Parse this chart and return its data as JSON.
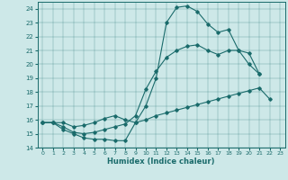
{
  "title": "",
  "xlabel": "Humidex (Indice chaleur)",
  "ylabel": "",
  "xlim": [
    -0.5,
    23.5
  ],
  "ylim": [
    14,
    24.5
  ],
  "yticks": [
    14,
    15,
    16,
    17,
    18,
    19,
    20,
    21,
    22,
    23,
    24
  ],
  "xticks": [
    0,
    1,
    2,
    3,
    4,
    5,
    6,
    7,
    8,
    9,
    10,
    11,
    12,
    13,
    14,
    15,
    16,
    17,
    18,
    19,
    20,
    21,
    22,
    23
  ],
  "bg_color": "#cde8e8",
  "line_color": "#1a6b6b",
  "curve1_x": [
    0,
    1,
    2,
    3,
    4,
    5,
    6,
    7,
    8,
    9,
    10,
    11,
    12,
    13,
    14,
    15,
    16,
    17,
    18,
    19,
    20,
    21
  ],
  "curve1_y": [
    15.8,
    15.8,
    15.3,
    15.0,
    14.7,
    14.6,
    14.6,
    14.5,
    14.5,
    15.8,
    17.0,
    19.0,
    23.0,
    24.1,
    24.2,
    23.8,
    22.9,
    22.3,
    22.5,
    21.0,
    20.0,
    19.3
  ],
  "curve2_x": [
    0,
    1,
    2,
    3,
    4,
    5,
    6,
    7,
    8,
    9,
    10,
    11,
    12,
    13,
    14,
    15,
    16,
    17,
    18,
    19,
    20,
    21,
    22
  ],
  "curve2_y": [
    15.8,
    15.8,
    15.8,
    15.5,
    15.6,
    15.8,
    16.1,
    16.3,
    16.0,
    15.8,
    16.0,
    16.3,
    16.5,
    16.7,
    16.9,
    17.1,
    17.3,
    17.5,
    17.7,
    17.9,
    18.1,
    18.3,
    17.5
  ],
  "curve3_x": [
    0,
    1,
    2,
    3,
    4,
    5,
    6,
    7,
    8,
    9,
    10,
    11,
    12,
    13,
    14,
    15,
    16,
    17,
    18,
    19,
    20,
    21
  ],
  "curve3_y": [
    15.8,
    15.8,
    15.5,
    15.1,
    15.0,
    15.1,
    15.3,
    15.5,
    15.7,
    16.3,
    18.2,
    19.5,
    20.5,
    21.0,
    21.3,
    21.4,
    21.0,
    20.7,
    21.0,
    21.0,
    20.8,
    19.3
  ]
}
